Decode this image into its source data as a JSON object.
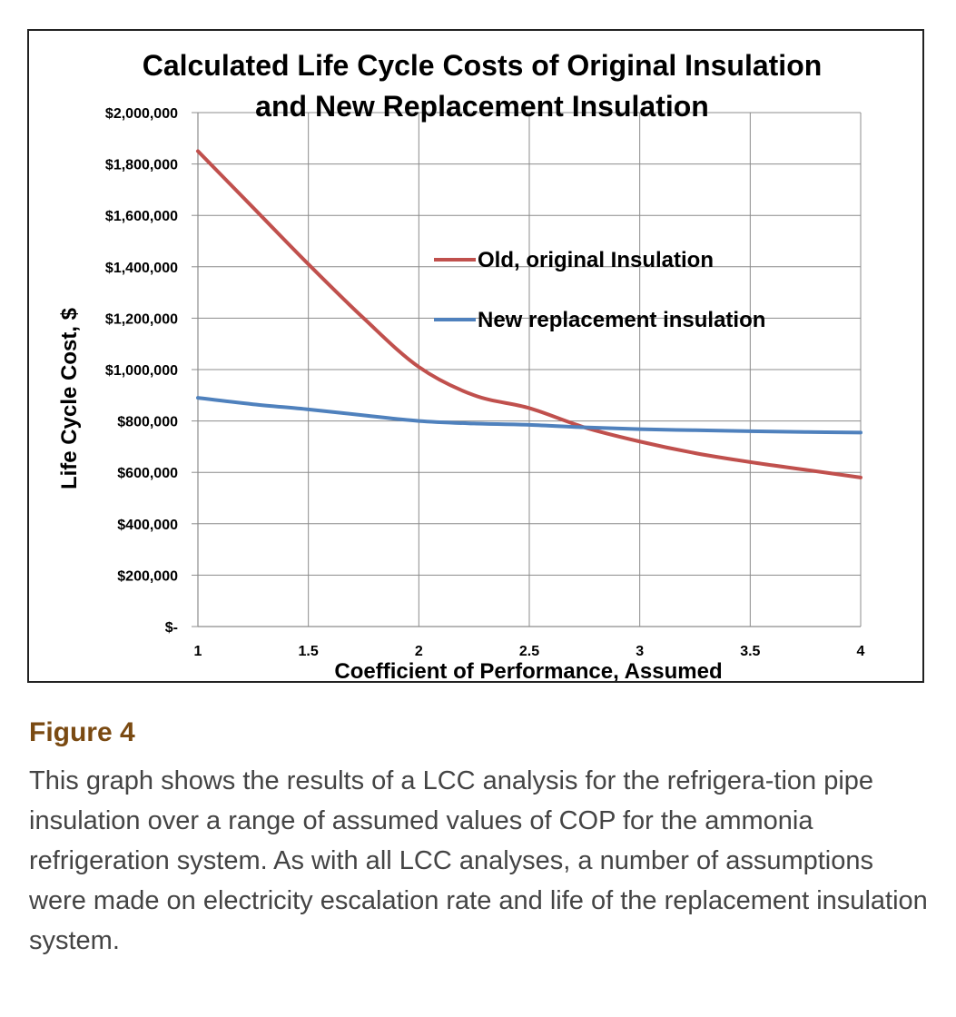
{
  "chart_data": {
    "type": "line",
    "title_lines": [
      "Calculated Life Cycle Costs of Original Insulation",
      "and New Replacement Insulation"
    ],
    "xlabel": "Coefficient of Performance, Assumed",
    "ylabel": "Life Cycle Cost, $",
    "xlim": [
      1,
      4
    ],
    "ylim": [
      0,
      2000000
    ],
    "x_ticks": [
      1,
      1.5,
      2,
      2.5,
      3,
      3.5,
      4
    ],
    "x_tick_labels": [
      "1",
      "1.5",
      "2",
      "2.5",
      "3",
      "3.5",
      "4"
    ],
    "y_ticks": [
      0,
      200000,
      400000,
      600000,
      800000,
      1000000,
      1200000,
      1400000,
      1600000,
      1800000,
      2000000
    ],
    "y_tick_labels": [
      "$-",
      "$200,000",
      "$400,000",
      "$600,000",
      "$800,000",
      "$1,000,000",
      "$1,200,000",
      "$1,400,000",
      "$1,600,000",
      "$1,800,000",
      "$2,000,000"
    ],
    "grid": true,
    "legend_position": "center-right",
    "series": [
      {
        "name": "Old, original Insulation",
        "color": "#c0504d",
        "x": [
          1,
          1.25,
          1.5,
          1.75,
          2,
          2.25,
          2.5,
          2.75,
          3,
          3.25,
          3.5,
          3.75,
          4
        ],
        "y": [
          1850000,
          1630000,
          1410000,
          1200000,
          1010000,
          900000,
          850000,
          775000,
          720000,
          675000,
          640000,
          610000,
          580000
        ]
      },
      {
        "name": "New replacement insulation",
        "color": "#4f81bd",
        "x": [
          1,
          1.25,
          1.5,
          1.75,
          2,
          2.25,
          2.5,
          2.75,
          3,
          3.25,
          3.5,
          3.75,
          4
        ],
        "y": [
          890000,
          865000,
          845000,
          822000,
          800000,
          790000,
          785000,
          775000,
          768000,
          764000,
          760000,
          757000,
          755000
        ]
      }
    ]
  },
  "caption": {
    "heading": "Figure 4",
    "body": "This graph shows the results of a LCC analysis for the refrigera-tion pipe insulation over a range of assumed values of COP for the ammonia refrigeration system. As with all LCC analyses, a number of assumptions were made on electricity escalation rate and life of the replacement insulation system."
  }
}
